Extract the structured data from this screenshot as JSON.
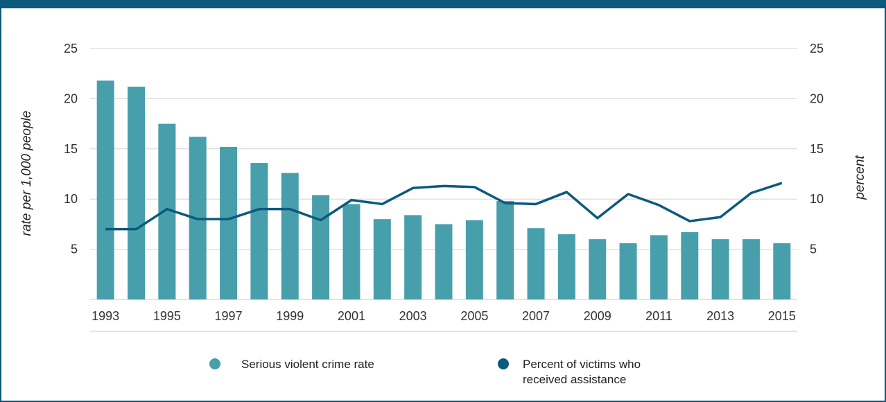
{
  "chart_data": {
    "type": "bar",
    "categories": [
      "1993",
      "1994",
      "1995",
      "1996",
      "1997",
      "1998",
      "1999",
      "2000",
      "2001",
      "2002",
      "2003",
      "2004",
      "2005",
      "2006",
      "2007",
      "2008",
      "2009",
      "2010",
      "2011",
      "2012",
      "2013",
      "2014",
      "2015"
    ],
    "x_tick_labels": [
      "1993",
      "1995",
      "1997",
      "1999",
      "2001",
      "2003",
      "2005",
      "2007",
      "2009",
      "2011",
      "2013",
      "2015"
    ],
    "series": [
      {
        "name": "Serious violent crime rate",
        "type": "bar",
        "axis": "left",
        "values": [
          21.8,
          21.2,
          17.5,
          16.2,
          15.2,
          13.6,
          12.6,
          10.4,
          9.5,
          8.0,
          8.4,
          7.5,
          7.9,
          9.8,
          7.1,
          6.5,
          6.0,
          5.6,
          6.4,
          6.7,
          6.0,
          6.0,
          5.6
        ],
        "color": "#489fac"
      },
      {
        "name": "Percent of victims who received assistance",
        "name_lines": [
          "Percent of victims who",
          "received assistance"
        ],
        "type": "line",
        "axis": "right",
        "values": [
          7.0,
          7.0,
          9.0,
          8.0,
          8.0,
          9.0,
          9.0,
          7.9,
          9.9,
          9.5,
          11.1,
          11.3,
          11.2,
          9.6,
          9.5,
          10.7,
          8.1,
          10.5,
          9.4,
          7.8,
          8.2,
          10.6,
          11.6
        ],
        "color": "#0b5a7c"
      }
    ],
    "ylabel": "rate per 1,000 people",
    "ylabel_right": "percent",
    "ylim": [
      0,
      25
    ],
    "ylim_right": [
      0,
      25
    ],
    "yticks": [
      "5",
      "10",
      "15",
      "20",
      "25"
    ],
    "grid": true,
    "legend_position": "bottom-center"
  }
}
